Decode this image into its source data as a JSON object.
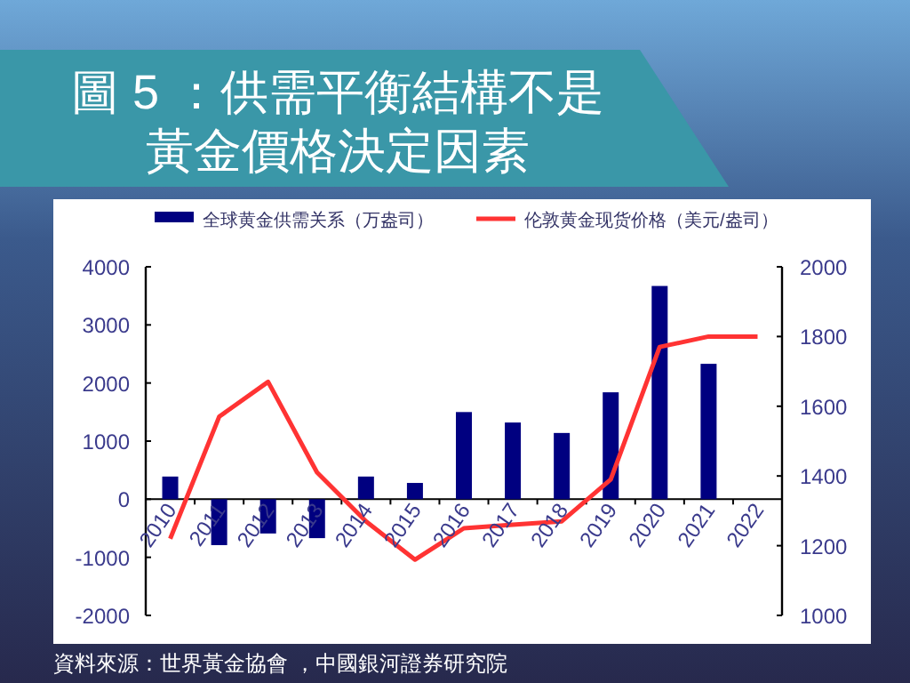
{
  "chart_data": {
    "type": "bar",
    "title": "圖 5 ：供需平衡結構不是黃金價格決定因素",
    "categories": [
      "2010",
      "2011",
      "2012",
      "2013",
      "2014",
      "2015",
      "2016",
      "2017",
      "2018",
      "2019",
      "2020",
      "2021",
      "2022"
    ],
    "series": [
      {
        "name": "全球黄金供需关系（万盎司）",
        "color": "#000080",
        "values": [
          390,
          -790,
          -590,
          -670,
          390,
          280,
          1500,
          1320,
          1140,
          1840,
          3670,
          2330,
          null
        ]
      },
      {
        "name": "伦敦黄金现货价格（美元/盎司）",
        "type": "line",
        "axis": "y2",
        "color": "#ff3333",
        "values": [
          1220,
          1570,
          1670,
          1410,
          1270,
          1160,
          1250,
          1260,
          1270,
          1390,
          1770,
          1800,
          1800
        ]
      }
    ],
    "ylim": [
      -2000,
      4000
    ],
    "yticks": [
      -2000,
      -1000,
      0,
      1000,
      2000,
      3000,
      4000
    ],
    "y2lim": [
      1000,
      2000
    ],
    "y2ticks": [
      1000,
      1200,
      1400,
      1600,
      1800,
      2000
    ],
    "legend": "top",
    "grid": false,
    "annotations": [
      "資料來源：世界黃金協會 ，中國銀河證券研究院"
    ]
  }
}
